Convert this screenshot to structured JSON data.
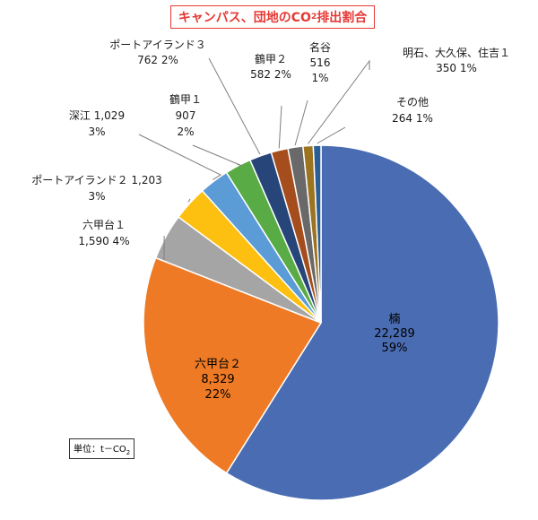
{
  "chart_data": {
    "type": "pie",
    "title": {
      "pre": "キャンパス、団地のCO",
      "sub": "2",
      "post": "排出割合"
    },
    "unit": {
      "pre": "単位：t－CO",
      "sub": "2"
    },
    "colors": [
      "#4a6cb2",
      "#ee7a25",
      "#a5a5a5",
      "#fdc010",
      "#5b9bd6",
      "#59ac45",
      "#274579",
      "#a54d1c",
      "#696969",
      "#9c7420",
      "#2a5e94"
    ],
    "slices": [
      {
        "name": "楠",
        "value": 22289,
        "value_label": "22,289",
        "percent": "59%"
      },
      {
        "name": "六甲台２",
        "value": 8329,
        "value_label": "8,329",
        "percent": "22%"
      },
      {
        "name": "六甲台１",
        "value": 1590,
        "value_label": "1,590",
        "percent": "4%"
      },
      {
        "name": "ポートアイランド２",
        "value": 1203,
        "value_label": "1,203",
        "percent": "3%"
      },
      {
        "name": "深江",
        "value": 1029,
        "value_label": "1,029",
        "percent": "3%"
      },
      {
        "name": "鶴甲１",
        "value": 907,
        "value_label": "907",
        "percent": "2%"
      },
      {
        "name": "ポートアイランド３",
        "value": 762,
        "value_label": "762",
        "percent": "2%"
      },
      {
        "name": "鶴甲２",
        "value": 582,
        "value_label": "582",
        "percent": "2%"
      },
      {
        "name": "名谷",
        "value": 516,
        "value_label": "516",
        "percent": "1%"
      },
      {
        "name": "明石、大久保、住吉１",
        "value": 350,
        "value_label": "350",
        "percent": "1%"
      },
      {
        "name": "その他",
        "value": 264,
        "value_label": "264",
        "percent": "1%"
      }
    ]
  }
}
